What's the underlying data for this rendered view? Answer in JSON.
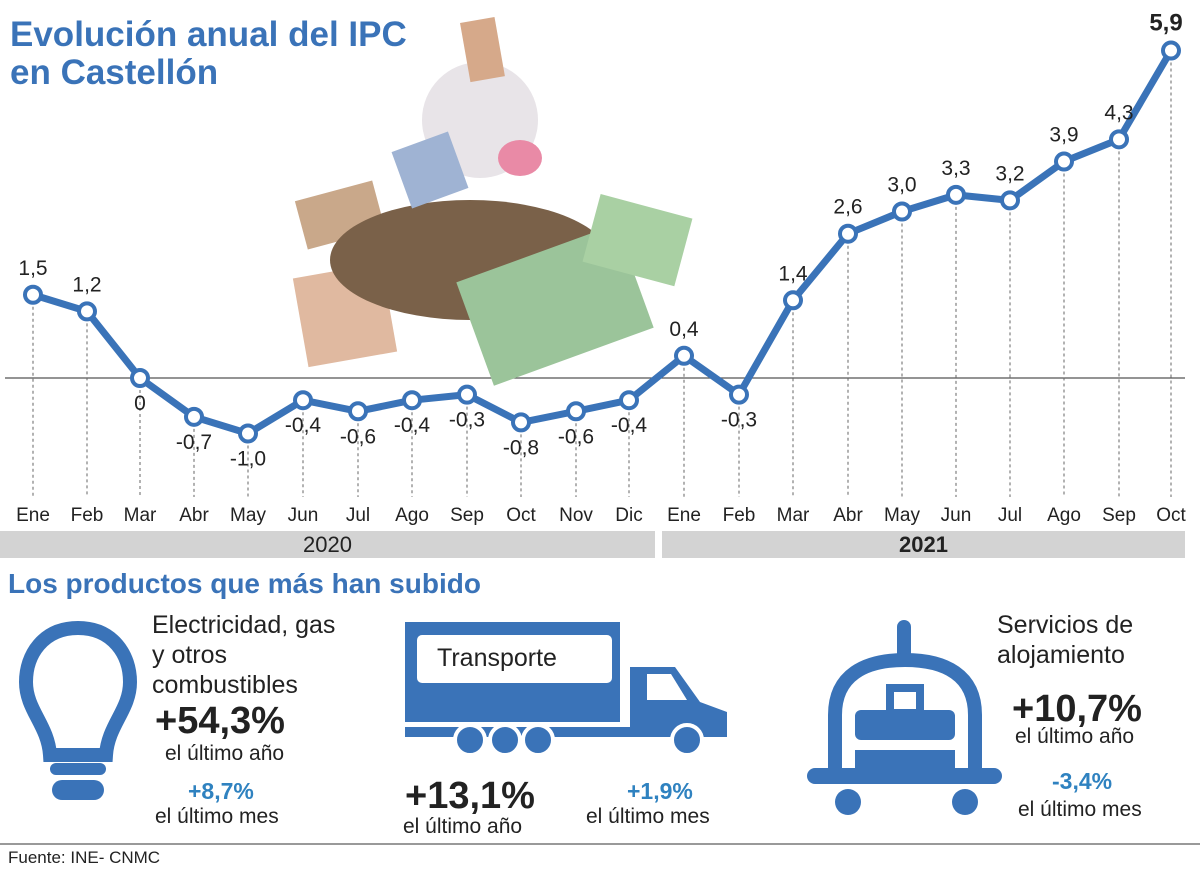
{
  "title": "Evolución anual del IPC en Castellón",
  "chart_data": {
    "type": "line",
    "title": "Evolución anual del IPC en Castellón",
    "categories": [
      "Ene",
      "Feb",
      "Mar",
      "Abr",
      "May",
      "Jun",
      "Jul",
      "Ago",
      "Sep",
      "Oct",
      "Nov",
      "Dic",
      "Ene",
      "Feb",
      "Mar",
      "Abr",
      "May",
      "Jun",
      "Jul",
      "Ago",
      "Sep",
      "Oct"
    ],
    "years": [
      "2020",
      "2021"
    ],
    "values": [
      1.5,
      1.2,
      0,
      -0.7,
      -1.0,
      -0.4,
      -0.6,
      -0.4,
      -0.3,
      -0.8,
      -0.6,
      -0.4,
      0.4,
      -0.3,
      1.4,
      2.6,
      3.0,
      3.3,
      3.2,
      3.9,
      4.3,
      5.9
    ],
    "labels": [
      "1,5",
      "1,2",
      "0",
      "-0,7",
      "-1,0",
      "-0,4",
      "-0,6",
      "-0,4",
      "-0,3",
      "-0,8",
      "-0,6",
      "-0,4",
      "0,4",
      "-0,3",
      "1,4",
      "2,6",
      "3,0",
      "3,3",
      "3,2",
      "3,9",
      "4,3",
      "5,9"
    ],
    "line_color": "#3a73b8"
  },
  "products": {
    "heading": "Los productos que más han subido",
    "items": [
      {
        "name": "Electricidad, gas y otros combustibles",
        "year_change": "+54,3%",
        "year_label": "el último año",
        "month_change": "+8,7%",
        "month_label": "el último mes",
        "icon": "lightbulb-icon"
      },
      {
        "name": "Transporte",
        "year_change": "+13,1%",
        "year_label": "el último año",
        "month_change": "+1,9%",
        "month_label": "el último mes",
        "icon": "truck-icon"
      },
      {
        "name": "Servicios de alojamiento",
        "year_change": "+10,7%",
        "year_label": "el último año",
        "month_change": "-3,4%",
        "month_label": "el último mes",
        "icon": "luggage-cart-icon"
      }
    ]
  },
  "source": "Fuente: INE- CNMC"
}
